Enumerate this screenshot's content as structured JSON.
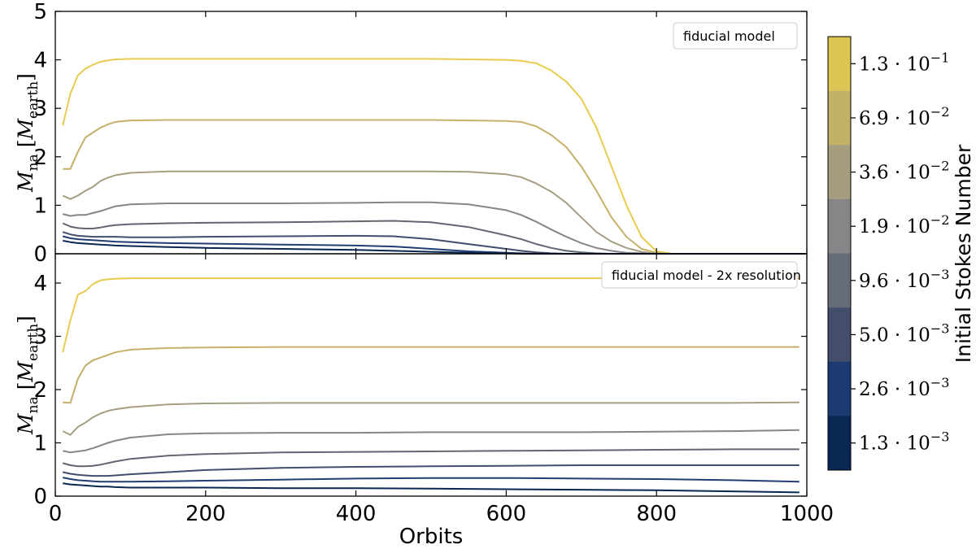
{
  "chart_data": [
    {
      "type": "line",
      "annotation": "fiducial model",
      "xlim": [
        0,
        1000
      ],
      "ylim": [
        0,
        5
      ],
      "yticks": [
        "0",
        "1",
        "2",
        "3",
        "4",
        "5"
      ],
      "ylabel": {
        "main": "M",
        "sub": "na",
        "unit_main": "M",
        "unit_sub": "earth"
      },
      "series": [
        {
          "color": "#e8cb4f",
          "x": [
            10,
            20,
            30,
            40,
            50,
            60,
            70,
            80,
            100,
            150,
            200,
            300,
            400,
            500,
            600,
            620,
            640,
            660,
            680,
            700,
            720,
            740,
            760,
            780,
            800,
            820,
            850,
            900,
            950,
            1000
          ],
          "y": [
            2.65,
            3.3,
            3.68,
            3.82,
            3.9,
            3.96,
            3.99,
            4.01,
            4.02,
            4.02,
            4.02,
            4.02,
            4.02,
            4.02,
            4.0,
            3.98,
            3.93,
            3.78,
            3.55,
            3.2,
            2.6,
            1.8,
            1.0,
            0.35,
            0.05,
            0.0,
            0.0,
            0.0,
            0.0,
            0.0
          ]
        },
        {
          "color": "#c5b069",
          "x": [
            10,
            20,
            30,
            40,
            50,
            60,
            70,
            80,
            100,
            150,
            200,
            300,
            400,
            500,
            600,
            620,
            640,
            660,
            680,
            700,
            720,
            740,
            760,
            780,
            800,
            820,
            850,
            900,
            950,
            1000
          ],
          "y": [
            1.75,
            1.75,
            2.1,
            2.4,
            2.5,
            2.6,
            2.67,
            2.72,
            2.75,
            2.76,
            2.76,
            2.76,
            2.76,
            2.76,
            2.74,
            2.72,
            2.63,
            2.45,
            2.2,
            1.8,
            1.3,
            0.75,
            0.35,
            0.1,
            0.02,
            0.0,
            0.0,
            0.0,
            0.0,
            0.0
          ]
        },
        {
          "color": "#a59e83",
          "x": [
            10,
            20,
            30,
            40,
            50,
            60,
            70,
            80,
            100,
            150,
            200,
            300,
            400,
            500,
            550,
            600,
            620,
            640,
            660,
            680,
            700,
            720,
            740,
            760,
            780,
            800,
            850,
            900,
            950,
            1000
          ],
          "y": [
            1.2,
            1.13,
            1.2,
            1.3,
            1.38,
            1.5,
            1.57,
            1.62,
            1.67,
            1.7,
            1.7,
            1.7,
            1.7,
            1.7,
            1.69,
            1.64,
            1.58,
            1.45,
            1.28,
            1.05,
            0.75,
            0.45,
            0.25,
            0.12,
            0.04,
            0.0,
            0.0,
            0.0,
            0.0,
            0.0
          ]
        },
        {
          "color": "#85858a",
          "x": [
            10,
            20,
            30,
            40,
            50,
            60,
            70,
            80,
            100,
            150,
            200,
            300,
            400,
            450,
            500,
            550,
            600,
            620,
            640,
            660,
            680,
            700,
            720,
            740,
            760,
            780,
            800,
            850,
            900,
            1000
          ],
          "y": [
            0.82,
            0.78,
            0.8,
            0.8,
            0.84,
            0.88,
            0.93,
            0.98,
            1.02,
            1.04,
            1.04,
            1.04,
            1.05,
            1.06,
            1.06,
            1.02,
            0.9,
            0.8,
            0.66,
            0.5,
            0.35,
            0.22,
            0.12,
            0.06,
            0.02,
            0.01,
            0.0,
            0.0,
            0.0,
            0.0
          ]
        },
        {
          "color": "#636672",
          "x": [
            10,
            20,
            30,
            40,
            50,
            60,
            70,
            80,
            100,
            150,
            200,
            300,
            400,
            450,
            500,
            550,
            600,
            620,
            640,
            660,
            680,
            700,
            720,
            740,
            760,
            780,
            800,
            850,
            900,
            1000
          ],
          "y": [
            0.63,
            0.56,
            0.53,
            0.52,
            0.52,
            0.54,
            0.57,
            0.59,
            0.61,
            0.63,
            0.64,
            0.65,
            0.67,
            0.68,
            0.65,
            0.55,
            0.38,
            0.3,
            0.2,
            0.12,
            0.06,
            0.03,
            0.01,
            0.0,
            0.0,
            0.0,
            0.0,
            0.0,
            0.0,
            0.0
          ]
        },
        {
          "color": "#424d6e",
          "x": [
            10,
            20,
            30,
            40,
            50,
            60,
            70,
            80,
            100,
            150,
            200,
            300,
            400,
            450,
            500,
            550,
            600,
            620,
            640,
            660,
            680,
            700,
            720,
            740,
            760,
            780,
            800,
            850,
            900,
            1000
          ],
          "y": [
            0.45,
            0.4,
            0.37,
            0.36,
            0.35,
            0.35,
            0.35,
            0.35,
            0.34,
            0.34,
            0.35,
            0.36,
            0.37,
            0.36,
            0.3,
            0.2,
            0.1,
            0.06,
            0.03,
            0.01,
            0.0,
            0.0,
            0.0,
            0.0,
            0.0,
            0.0,
            0.0,
            0.0,
            0.0,
            0.0
          ]
        },
        {
          "color": "#213d73",
          "x": [
            10,
            20,
            30,
            40,
            50,
            60,
            70,
            80,
            100,
            150,
            200,
            300,
            400,
            450,
            500,
            550,
            600,
            620,
            640,
            660,
            680,
            700,
            720,
            740,
            760,
            780,
            800,
            850,
            900,
            1000
          ],
          "y": [
            0.36,
            0.32,
            0.3,
            0.29,
            0.28,
            0.27,
            0.26,
            0.25,
            0.24,
            0.22,
            0.21,
            0.19,
            0.17,
            0.15,
            0.1,
            0.05,
            0.02,
            0.01,
            0.0,
            0.0,
            0.0,
            0.0,
            0.0,
            0.0,
            0.0,
            0.0,
            0.0,
            0.0,
            0.0,
            0.0
          ]
        },
        {
          "color": "#0a2752",
          "x": [
            10,
            20,
            30,
            40,
            50,
            60,
            70,
            80,
            100,
            150,
            200,
            300,
            400,
            450,
            500,
            550,
            600,
            620,
            640,
            660,
            680,
            700,
            720,
            740,
            760,
            780,
            800,
            850,
            900,
            1000
          ],
          "y": [
            0.27,
            0.24,
            0.22,
            0.21,
            0.2,
            0.19,
            0.18,
            0.17,
            0.16,
            0.14,
            0.12,
            0.1,
            0.08,
            0.06,
            0.04,
            0.02,
            0.01,
            0.0,
            0.0,
            0.0,
            0.0,
            0.0,
            0.0,
            0.0,
            0.0,
            0.0,
            0.0,
            0.0,
            0.0,
            0.0
          ]
        }
      ]
    },
    {
      "type": "line",
      "annotation": "fiducial model - 2x resolution",
      "xlim": [
        0,
        1000
      ],
      "ylim": [
        0,
        4.55
      ],
      "xlabel": "Orbits",
      "xticks": [
        "0",
        "200",
        "400",
        "600",
        "800",
        "1000"
      ],
      "yticks": [
        "0",
        "1",
        "2",
        "3",
        "4"
      ],
      "ylabel": {
        "main": "M",
        "sub": "na",
        "unit_main": "M",
        "unit_sub": "earth"
      },
      "series": [
        {
          "color": "#e8cb4f",
          "x": [
            10,
            20,
            30,
            40,
            50,
            60,
            70,
            80,
            100,
            150,
            200,
            300,
            400,
            500,
            600,
            700,
            800,
            900,
            990
          ],
          "y": [
            2.7,
            3.3,
            3.78,
            3.85,
            3.98,
            4.05,
            4.07,
            4.08,
            4.09,
            4.09,
            4.09,
            4.09,
            4.09,
            4.09,
            4.09,
            4.09,
            4.09,
            4.09,
            4.09
          ]
        },
        {
          "color": "#c5b069",
          "x": [
            10,
            20,
            30,
            40,
            50,
            60,
            70,
            80,
            100,
            150,
            200,
            300,
            400,
            500,
            600,
            700,
            800,
            900,
            990
          ],
          "y": [
            1.76,
            1.75,
            2.2,
            2.45,
            2.55,
            2.6,
            2.65,
            2.7,
            2.75,
            2.78,
            2.79,
            2.8,
            2.8,
            2.8,
            2.8,
            2.8,
            2.8,
            2.8,
            2.8
          ]
        },
        {
          "color": "#a59e83",
          "x": [
            10,
            20,
            30,
            40,
            50,
            60,
            70,
            80,
            100,
            150,
            200,
            300,
            400,
            500,
            600,
            700,
            800,
            900,
            990
          ],
          "y": [
            1.22,
            1.15,
            1.3,
            1.38,
            1.48,
            1.55,
            1.6,
            1.63,
            1.67,
            1.72,
            1.74,
            1.75,
            1.75,
            1.75,
            1.75,
            1.75,
            1.75,
            1.75,
            1.76
          ]
        },
        {
          "color": "#85858a",
          "x": [
            10,
            20,
            30,
            40,
            50,
            60,
            70,
            80,
            100,
            150,
            200,
            300,
            400,
            500,
            600,
            700,
            800,
            900,
            990
          ],
          "y": [
            0.85,
            0.82,
            0.84,
            0.86,
            0.9,
            0.95,
            1.0,
            1.04,
            1.1,
            1.16,
            1.18,
            1.19,
            1.19,
            1.2,
            1.2,
            1.2,
            1.21,
            1.22,
            1.24
          ]
        },
        {
          "color": "#636672",
          "x": [
            10,
            20,
            30,
            40,
            50,
            60,
            70,
            80,
            100,
            150,
            200,
            300,
            400,
            500,
            600,
            700,
            800,
            900,
            990
          ],
          "y": [
            0.62,
            0.58,
            0.56,
            0.56,
            0.57,
            0.59,
            0.62,
            0.65,
            0.7,
            0.76,
            0.79,
            0.82,
            0.83,
            0.84,
            0.85,
            0.86,
            0.87,
            0.88,
            0.88
          ]
        },
        {
          "color": "#424d6e",
          "x": [
            10,
            20,
            30,
            40,
            50,
            60,
            70,
            80,
            100,
            150,
            200,
            300,
            400,
            500,
            600,
            700,
            800,
            900,
            990
          ],
          "y": [
            0.45,
            0.42,
            0.4,
            0.39,
            0.38,
            0.38,
            0.38,
            0.39,
            0.41,
            0.45,
            0.49,
            0.53,
            0.55,
            0.56,
            0.57,
            0.58,
            0.58,
            0.58,
            0.58
          ]
        },
        {
          "color": "#213d73",
          "x": [
            10,
            20,
            30,
            40,
            50,
            60,
            70,
            80,
            100,
            150,
            200,
            300,
            400,
            500,
            600,
            700,
            800,
            900,
            990
          ],
          "y": [
            0.35,
            0.32,
            0.3,
            0.29,
            0.28,
            0.27,
            0.27,
            0.27,
            0.27,
            0.28,
            0.29,
            0.31,
            0.33,
            0.34,
            0.34,
            0.33,
            0.32,
            0.3,
            0.27
          ]
        },
        {
          "color": "#0a2752",
          "x": [
            10,
            20,
            30,
            40,
            50,
            60,
            70,
            80,
            100,
            150,
            200,
            300,
            400,
            500,
            600,
            700,
            800,
            900,
            990
          ],
          "y": [
            0.24,
            0.22,
            0.21,
            0.2,
            0.19,
            0.18,
            0.18,
            0.17,
            0.16,
            0.16,
            0.16,
            0.15,
            0.15,
            0.14,
            0.13,
            0.12,
            0.11,
            0.09,
            0.07
          ]
        }
      ]
    }
  ],
  "colorbar": {
    "title": "Initial Stokes Number",
    "bands": [
      {
        "color": "#ddc453",
        "label_base": "1.3 · 10",
        "label_exp": "−1"
      },
      {
        "color": "#c4b168",
        "label_base": "6.9 · 10",
        "label_exp": "−2"
      },
      {
        "color": "#a49d80",
        "label_base": "3.6 · 10",
        "label_exp": "−2"
      },
      {
        "color": "#868688",
        "label_base": "1.9 · 10",
        "label_exp": "−2"
      },
      {
        "color": "#676d78",
        "label_base": "9.6 · 10",
        "label_exp": "−3"
      },
      {
        "color": "#434e6d",
        "label_base": "5.0 · 10",
        "label_exp": "−3"
      },
      {
        "color": "#1d3a72",
        "label_base": "2.6 · 10",
        "label_exp": "−3"
      },
      {
        "color": "#0a2752",
        "label_base": "1.3 · 10",
        "label_exp": "−3"
      }
    ]
  }
}
